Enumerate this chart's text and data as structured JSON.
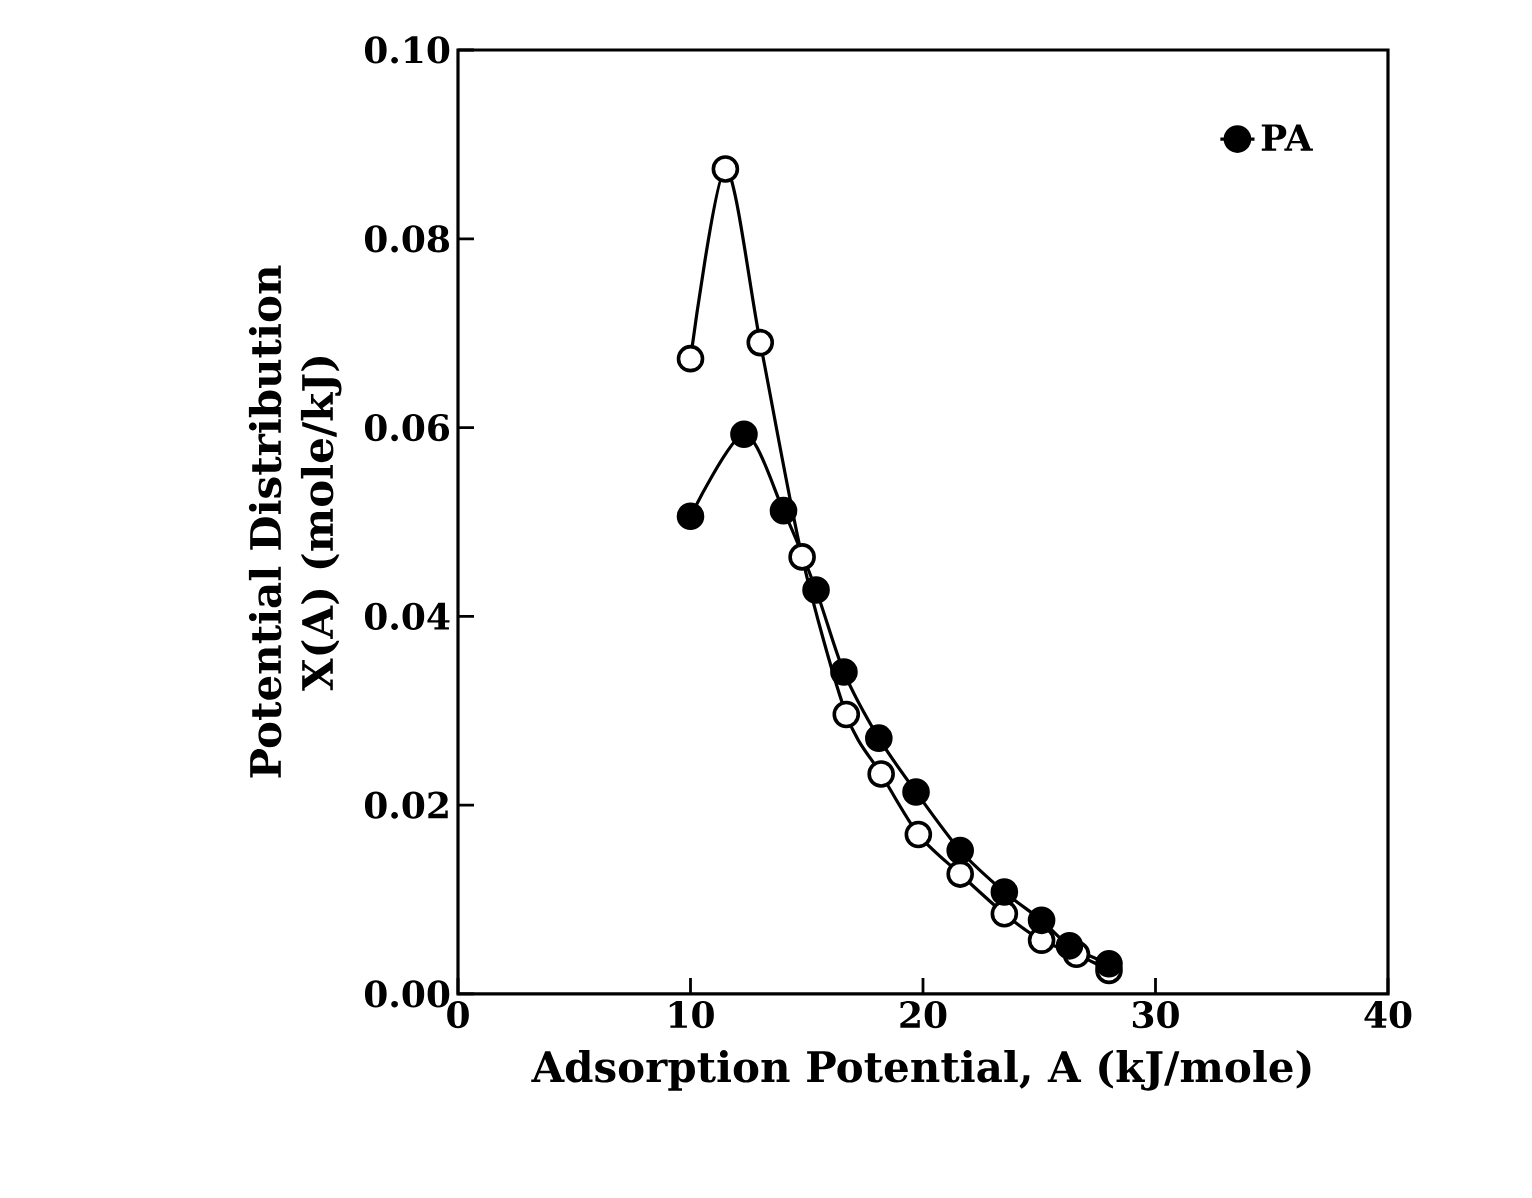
{
  "chart_data": {
    "type": "line",
    "xlabel": "Adsorption Potential, A (kJ/mole)",
    "ylabel": "Potential Distribution X(A) (mole/kJ)",
    "xlim": [
      0,
      40
    ],
    "xticks": [
      0,
      10,
      20,
      30,
      40
    ],
    "ylim": [
      0,
      0.1
    ],
    "yticks": [
      {
        "value": 0,
        "label": "0.00"
      },
      {
        "value": 0.02,
        "label": "0.02"
      },
      {
        "value": 0.04,
        "label": "0.04"
      },
      {
        "value": 0.06,
        "label": "0.06"
      },
      {
        "value": 0.08,
        "label": "0.08"
      },
      {
        "value": 0.1,
        "label": "0.10"
      }
    ],
    "marker": "circle",
    "legend": "top right",
    "grid": false,
    "series": [
      {
        "color": "#000000",
        "x": [
          10.0,
          11.5,
          13.0,
          14.8,
          16.7,
          18.2,
          19.8,
          21.6,
          23.5,
          25.1,
          26.6,
          28.0
        ],
        "values": [
          0.0673,
          0.0874,
          0.069,
          0.0463,
          0.0296,
          0.0233,
          0.0169,
          0.0127,
          0.0085,
          0.0057,
          0.0042,
          0.0025
        ]
      },
      {
        "name": "PA",
        "color": "#000000",
        "x": [
          10.0,
          12.3,
          14.0,
          15.4,
          16.6,
          18.1,
          19.7,
          21.6,
          23.5,
          25.1,
          26.3,
          28.0
        ],
        "values": [
          0.0506,
          0.0593,
          0.0512,
          0.0428,
          0.0341,
          0.0271,
          0.0214,
          0.0152,
          0.0108,
          0.0078,
          0.0051,
          0.0032
        ]
      }
    ]
  }
}
